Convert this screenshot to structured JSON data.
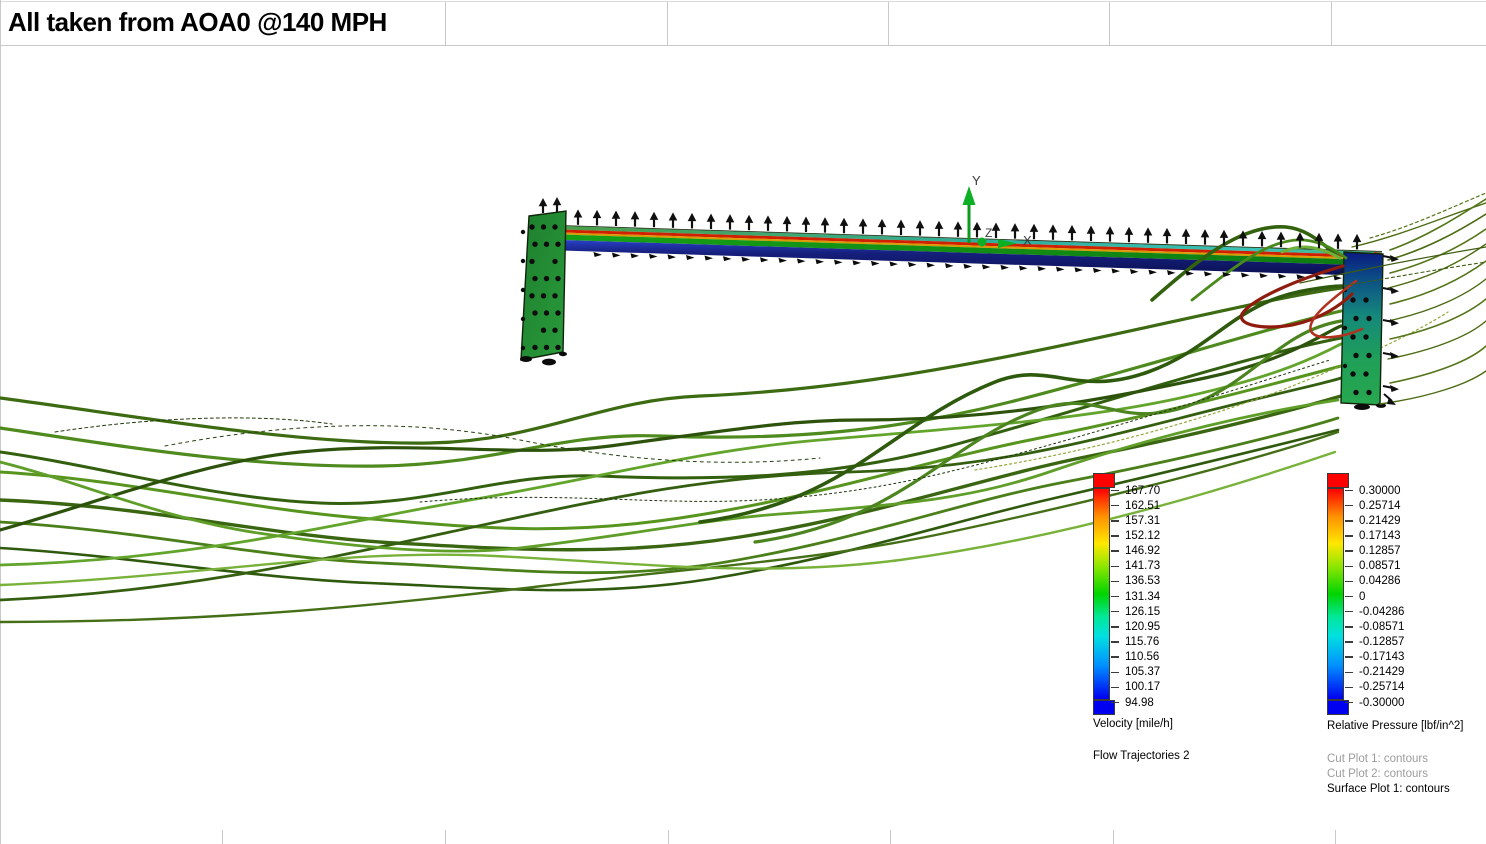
{
  "title": "All taken from AOA0 @140 MPH",
  "axis_triad": {
    "x": "X",
    "y": "Y",
    "z": "Z"
  },
  "legends": {
    "velocity": {
      "values": [
        "167.70",
        "162.51",
        "157.31",
        "152.12",
        "146.92",
        "141.73",
        "136.53",
        "131.34",
        "126.15",
        "120.95",
        "115.76",
        "110.56",
        "105.37",
        "100.17",
        "94.98"
      ],
      "unit_label": "Velocity [mile/h]",
      "plot_label": "Flow Trajectories 2",
      "top_color": "#ff0000",
      "bottom_color": "#0000f0"
    },
    "pressure": {
      "values": [
        "0.30000",
        "0.25714",
        "0.21429",
        "0.17143",
        "0.12857",
        "0.08571",
        "0.04286",
        "0",
        "-0.04286",
        "-0.08571",
        "-0.12857",
        "-0.17143",
        "-0.21429",
        "-0.25714",
        "-0.30000"
      ],
      "unit_label": "Relative Pressure [lbf/in^2]",
      "plots_gray": [
        "Cut Plot 1: contours",
        "Cut Plot 2: contours"
      ],
      "plot_black": "Surface Plot 1: contours"
    }
  }
}
